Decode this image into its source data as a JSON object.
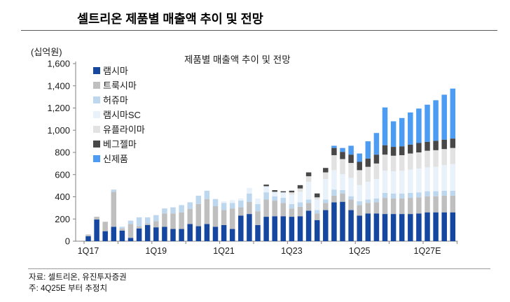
{
  "header": {
    "title": "셀트리온 제품별 매출액 추이 및 전망"
  },
  "footer": {
    "source": "자료: 셀트리온, 유진투자증권",
    "note": "주: 4Q25E 부터 추정치"
  },
  "chart_data": {
    "type": "bar",
    "stacked": true,
    "title": "제품별 매출액 추이 및 전망",
    "unit_label": "(십억원)",
    "ylabel": "",
    "xlabel": "",
    "ylim": [
      0,
      1600
    ],
    "ytick_step": 200,
    "grid": false,
    "legend_position": "upper-left-inside",
    "label_every": 8,
    "tick_every": 4,
    "xtick_labels_shown": [
      "1Q17",
      "1Q19",
      "1Q21",
      "1Q23",
      "1Q25",
      "1Q27E"
    ],
    "categories": [
      "1Q17",
      "2Q17",
      "3Q17",
      "4Q17",
      "1Q18",
      "2Q18",
      "3Q18",
      "4Q18",
      "1Q19",
      "2Q19",
      "3Q19",
      "4Q19",
      "1Q20",
      "2Q20",
      "3Q20",
      "4Q20",
      "1Q21",
      "2Q21",
      "3Q21",
      "4Q21",
      "1Q22",
      "2Q22",
      "3Q22",
      "4Q22",
      "1Q23",
      "2Q23",
      "3Q23",
      "4Q23",
      "1Q24",
      "2Q24",
      "3Q24",
      "4Q24",
      "1Q25",
      "2Q25",
      "3Q25",
      "4Q25E",
      "1Q26E",
      "2Q26E",
      "3Q26E",
      "4Q26E",
      "1Q27E",
      "2Q27E",
      "3Q27E",
      "4Q27E"
    ],
    "series": [
      {
        "name": "램시마",
        "color": "#1546A0",
        "values": [
          45,
          195,
          90,
          130,
          95,
          30,
          115,
          145,
          125,
          130,
          110,
          110,
          155,
          135,
          155,
          130,
          145,
          110,
          230,
          245,
          145,
          220,
          225,
          225,
          220,
          225,
          275,
          190,
          280,
          350,
          355,
          280,
          230,
          250,
          250,
          245,
          245,
          245,
          245,
          250,
          260,
          260,
          260,
          260
        ]
      },
      {
        "name": "트룩시마",
        "color": "#BFBFBF",
        "values": [
          15,
          25,
          85,
          315,
          20,
          125,
          20,
          15,
          55,
          120,
          140,
          150,
          135,
          200,
          225,
          185,
          135,
          185,
          75,
          110,
          125,
          155,
          140,
          120,
          75,
          85,
          70,
          60,
          65,
          60,
          75,
          95,
          95,
          95,
          100,
          145,
          140,
          140,
          145,
          145,
          145,
          145,
          150,
          150
        ]
      },
      {
        "name": "허쥬마",
        "color": "#BDD7EE",
        "values": [
          0,
          0,
          0,
          20,
          15,
          30,
          80,
          55,
          55,
          45,
          55,
          65,
          60,
          75,
          75,
          65,
          65,
          50,
          60,
          75,
          65,
          65,
          40,
          45,
          40,
          40,
          30,
          30,
          30,
          55,
          30,
          30,
          35,
          30,
          35,
          45,
          45,
          45,
          45,
          45,
          45,
          45,
          45,
          45
        ]
      },
      {
        "name": "램시마SC",
        "color": "#E9F2FB",
        "values": [
          0,
          0,
          0,
          0,
          0,
          0,
          0,
          0,
          0,
          0,
          0,
          0,
          0,
          0,
          0,
          0,
          15,
          25,
          20,
          50,
          50,
          55,
          40,
          50,
          85,
          95,
          160,
          95,
          185,
          175,
          145,
          165,
          145,
          160,
          175,
          200,
          200,
          205,
          210,
          215,
          215,
          220,
          230,
          240
        ]
      },
      {
        "name": "유플라이마",
        "color": "#E2E2E2",
        "values": [
          0,
          0,
          0,
          0,
          0,
          0,
          0,
          0,
          0,
          0,
          0,
          0,
          0,
          0,
          0,
          0,
          0,
          0,
          0,
          0,
          0,
          0,
          0,
          0,
          20,
          30,
          50,
          20,
          60,
          135,
          135,
          135,
          135,
          135,
          140,
          145,
          140,
          140,
          145,
          145,
          150,
          150,
          145,
          145
        ]
      },
      {
        "name": "베그젤마",
        "color": "#484848",
        "values": [
          0,
          0,
          0,
          0,
          0,
          0,
          0,
          0,
          0,
          0,
          0,
          0,
          0,
          0,
          0,
          0,
          0,
          0,
          0,
          0,
          0,
          15,
          15,
          10,
          15,
          30,
          35,
          35,
          40,
          65,
          65,
          75,
          75,
          75,
          80,
          85,
          80,
          80,
          80,
          85,
          80,
          85,
          85,
          85
        ]
      },
      {
        "name": "신제품",
        "color": "#4B9CF2",
        "values": [
          0,
          0,
          0,
          0,
          0,
          0,
          0,
          0,
          0,
          0,
          0,
          0,
          0,
          0,
          0,
          0,
          0,
          0,
          0,
          0,
          0,
          0,
          0,
          0,
          0,
          0,
          0,
          0,
          0,
          20,
          35,
          80,
          75,
          155,
          195,
          340,
          230,
          255,
          290,
          310,
          335,
          365,
          405,
          450
        ]
      }
    ]
  }
}
